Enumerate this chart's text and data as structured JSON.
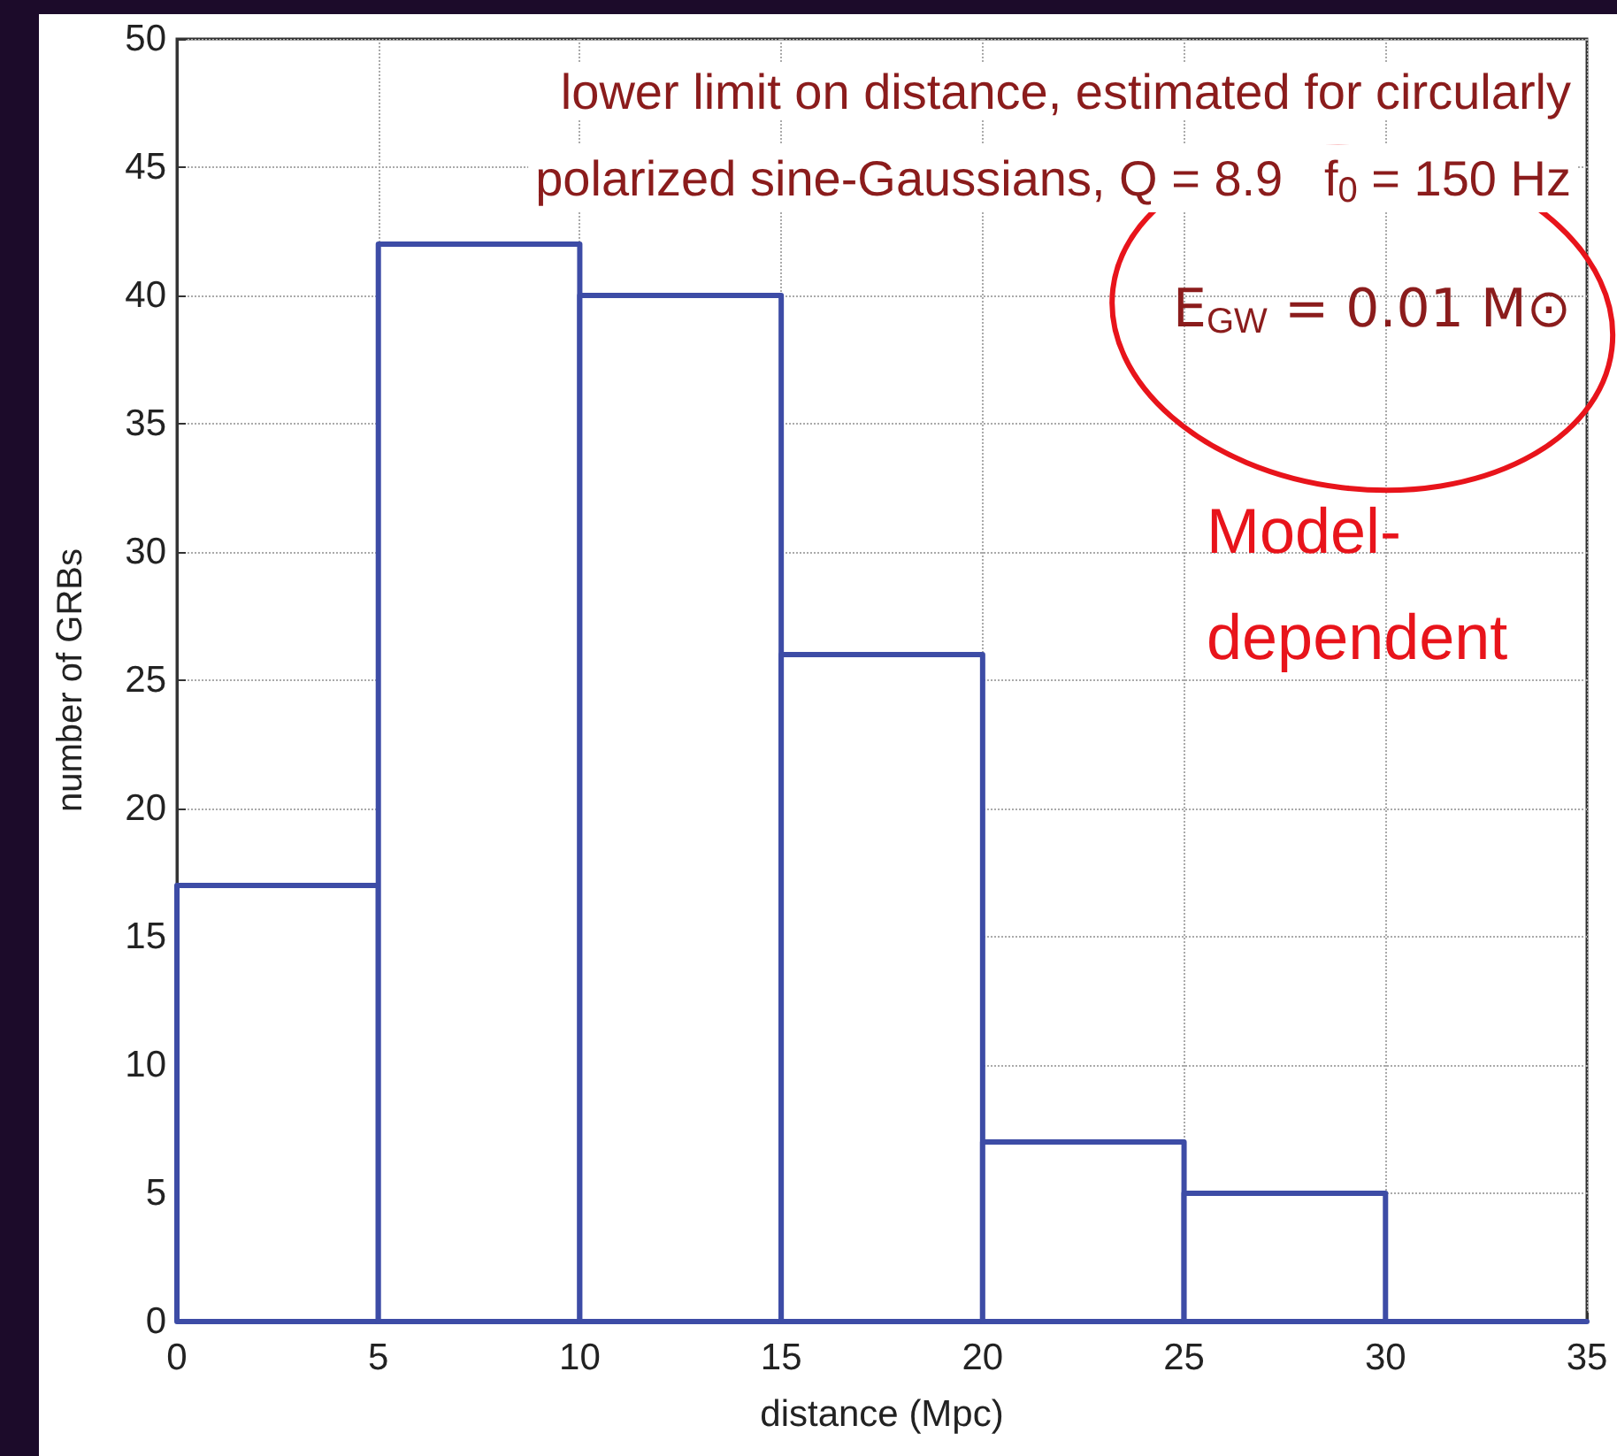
{
  "chart_data": {
    "type": "histogram",
    "xlabel": "distance (Mpc)",
    "ylabel": "number of GRBs",
    "bins": [
      0,
      5,
      10,
      15,
      20,
      25,
      30,
      35
    ],
    "values": [
      17,
      42,
      40,
      26,
      7,
      5,
      0
    ],
    "color": "#3d4ca6",
    "xlim": [
      0,
      35
    ],
    "xticks": [
      0,
      5,
      10,
      15,
      20,
      25,
      30,
      35
    ],
    "ylim": [
      0,
      50
    ],
    "yticks": [
      0,
      5,
      10,
      15,
      20,
      25,
      30,
      35,
      40,
      45,
      50
    ],
    "grid": true,
    "annotations": [
      "lower limit on distance, estimated for circularly\npolarized sine-Gaussians, Q = 8.9   f$_{0}$ = 150 Hz",
      "E$_{GW}$ = 0.01 M⊙",
      "Model-dependent"
    ]
  }
}
